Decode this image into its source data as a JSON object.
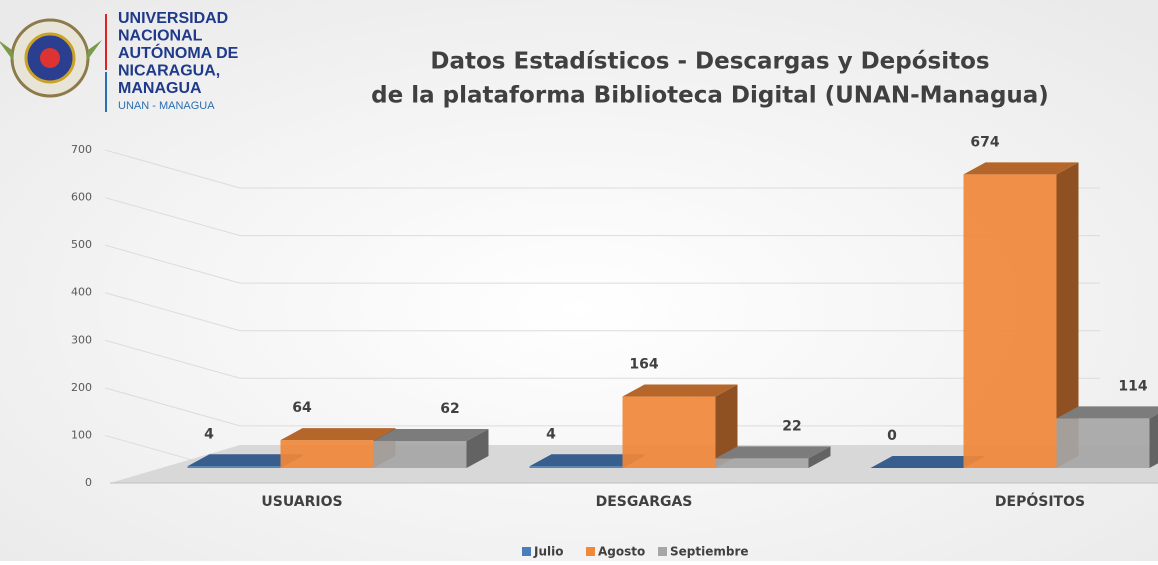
{
  "header": {
    "lines": [
      "UNIVERSIDAD",
      "NACIONAL",
      "AUTÓNOMA DE",
      "NICARAGUA,",
      "MANAGUA"
    ],
    "subtitle": "UNAN - MANAGUA"
  },
  "chart_data": {
    "type": "bar3d",
    "title": [
      "Datos Estadísticos - Descargas y Depósitos",
      "de la plataforma Biblioteca Digital (UNAN-Managua)"
    ],
    "categories": [
      "USUARIOS",
      "DESGARGAS",
      "DEPÓSITOS"
    ],
    "series": [
      {
        "name": "Julio",
        "color": "#4a7ebb",
        "values": [
          4,
          4,
          0
        ]
      },
      {
        "name": "Agosto",
        "color": "#f0883a",
        "values": [
          64,
          164,
          674
        ]
      },
      {
        "name": "Septiembre",
        "color": "#a6a6a6",
        "values": [
          62,
          22,
          114
        ]
      }
    ],
    "ylim": [
      0,
      700
    ],
    "yticks": [
      0,
      100,
      200,
      300,
      400,
      500,
      600,
      700
    ],
    "grid": true,
    "legend": "bottom"
  }
}
